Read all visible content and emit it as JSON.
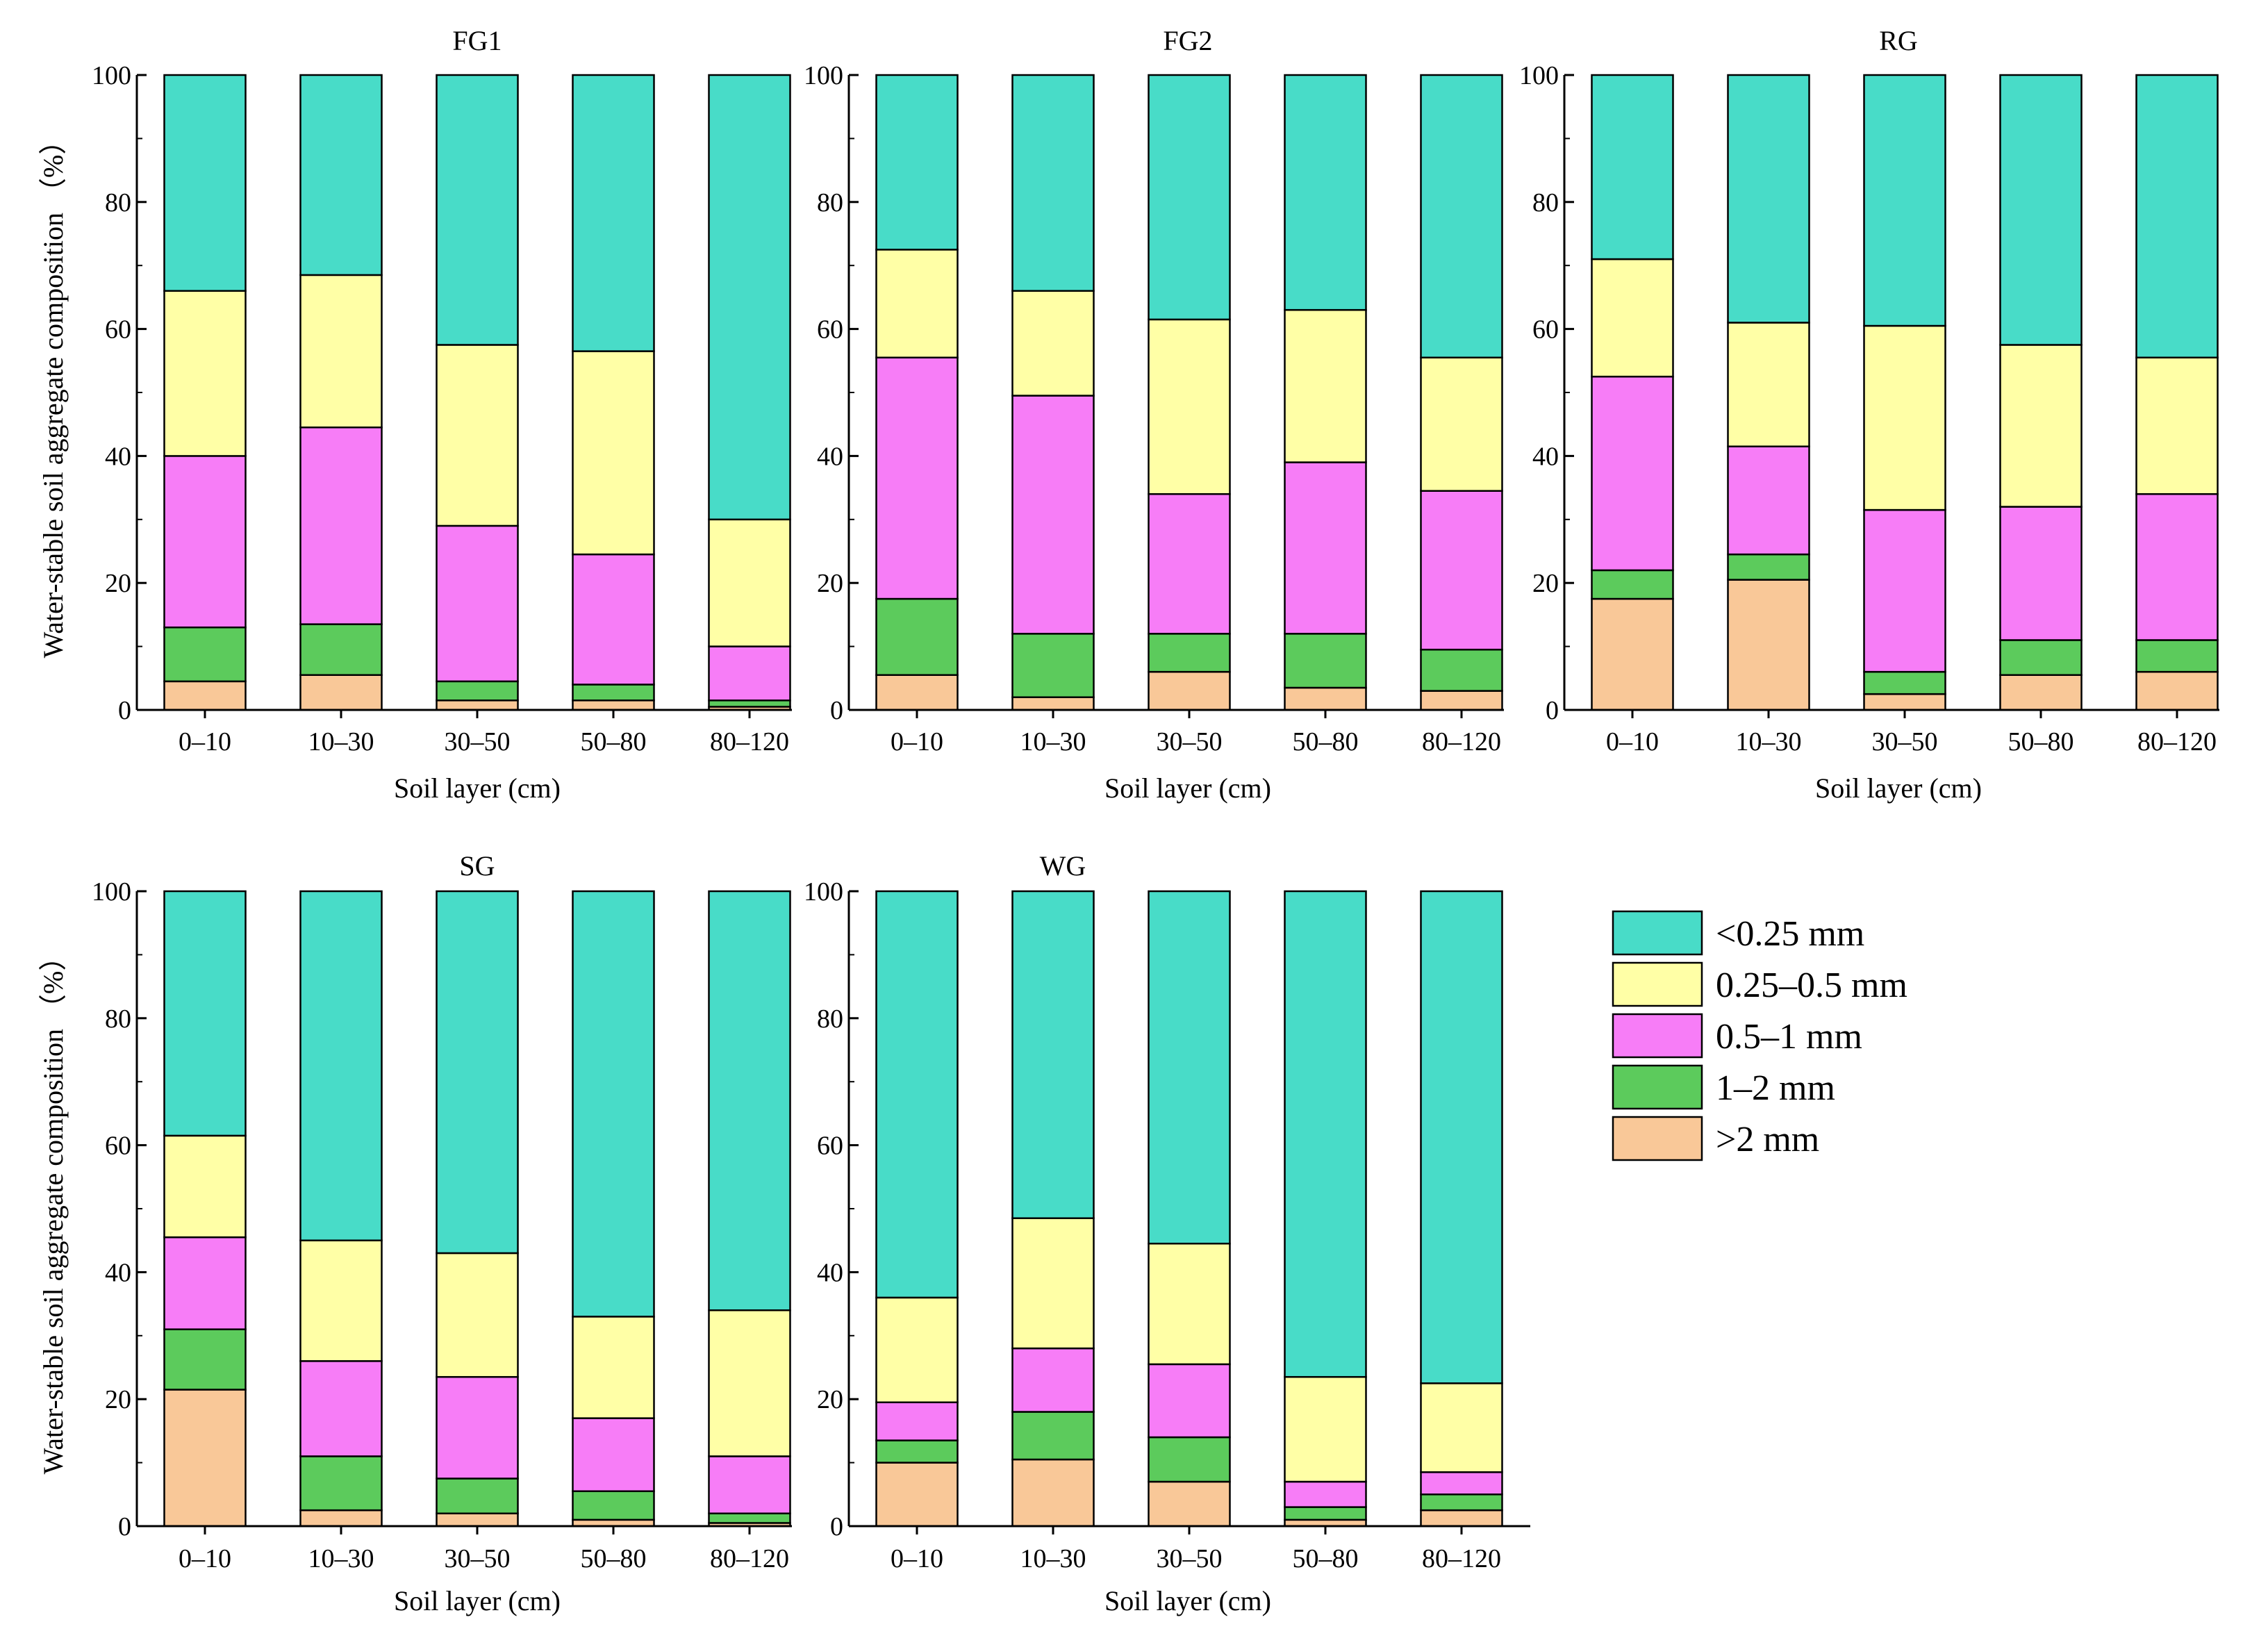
{
  "chart_data": {
    "type": "bar",
    "stacked": true,
    "ylabel": "Water-stable soil aggregate composition （%）",
    "xlabel": "Soil layer (cm)",
    "ylim": [
      0,
      100
    ],
    "yticks": [
      0,
      20,
      40,
      60,
      80,
      100
    ],
    "categories": [
      "0–10",
      "10–30",
      "30–50",
      "50–80",
      "80–120"
    ],
    "legend_position": "right",
    "series_meta": [
      {
        "key": "gt2",
        "name": ">2 mm",
        "color": "#F9C898"
      },
      {
        "key": "s1_2",
        "name": "1–2 mm",
        "color": "#5CCB5C"
      },
      {
        "key": "s05_1",
        "name": "0.5–1 mm",
        "color": "#F77DF7"
      },
      {
        "key": "s025_05",
        "name": "0.25–0.5 mm",
        "color": "#FFFFA6"
      },
      {
        "key": "lt025",
        "name": "<0.25 mm",
        "color": "#48DCC8"
      }
    ],
    "legend_order": [
      "lt025",
      "s025_05",
      "s05_1",
      "s1_2",
      "gt2"
    ],
    "panels": [
      {
        "title": "FG1",
        "series": {
          "gt2": [
            4.5,
            5.5,
            1.5,
            1.5,
            0.5
          ],
          "s1_2": [
            8.5,
            8,
            3,
            2.5,
            1
          ],
          "s05_1": [
            27,
            31,
            24.5,
            20.5,
            8.5
          ],
          "s025_05": [
            26,
            24,
            28.5,
            32,
            20
          ],
          "lt025": [
            34,
            31.5,
            42.5,
            43.5,
            70
          ]
        }
      },
      {
        "title": "FG2",
        "series": {
          "gt2": [
            5.5,
            2,
            6,
            3.5,
            3
          ],
          "s1_2": [
            12,
            10,
            6,
            8.5,
            6.5
          ],
          "s05_1": [
            38,
            37.5,
            22,
            27,
            25
          ],
          "s025_05": [
            17,
            16.5,
            27.5,
            24,
            21
          ],
          "lt025": [
            27.5,
            34,
            38.5,
            37,
            44.5
          ]
        }
      },
      {
        "title": "RG",
        "series": {
          "gt2": [
            17.5,
            20.5,
            2.5,
            5.5,
            6
          ],
          "s1_2": [
            4.5,
            4,
            3.5,
            5.5,
            5
          ],
          "s05_1": [
            30.5,
            17,
            25.5,
            21,
            23
          ],
          "s025_05": [
            18.5,
            19.5,
            29,
            25.5,
            21.5
          ],
          "lt025": [
            29,
            39,
            39.5,
            42.5,
            44.5
          ]
        }
      },
      {
        "title": "SG",
        "series": {
          "gt2": [
            21.5,
            2.5,
            2,
            1,
            0.5
          ],
          "s1_2": [
            9.5,
            8.5,
            5.5,
            4.5,
            1.5
          ],
          "s05_1": [
            14.5,
            15,
            16,
            11.5,
            9
          ],
          "s025_05": [
            16,
            19,
            19.5,
            16,
            23
          ],
          "lt025": [
            38.5,
            55,
            57,
            67,
            66
          ]
        }
      },
      {
        "title": "WG",
        "series": {
          "gt2": [
            10,
            10.5,
            7,
            1,
            2.5
          ],
          "s1_2": [
            3.5,
            7.5,
            7,
            2,
            2.5
          ],
          "s05_1": [
            6,
            10,
            11.5,
            4,
            3.5
          ],
          "s025_05": [
            16.5,
            20.5,
            19,
            16.5,
            14
          ],
          "lt025": [
            64,
            51.5,
            55.5,
            76.5,
            77.5
          ]
        }
      }
    ]
  }
}
